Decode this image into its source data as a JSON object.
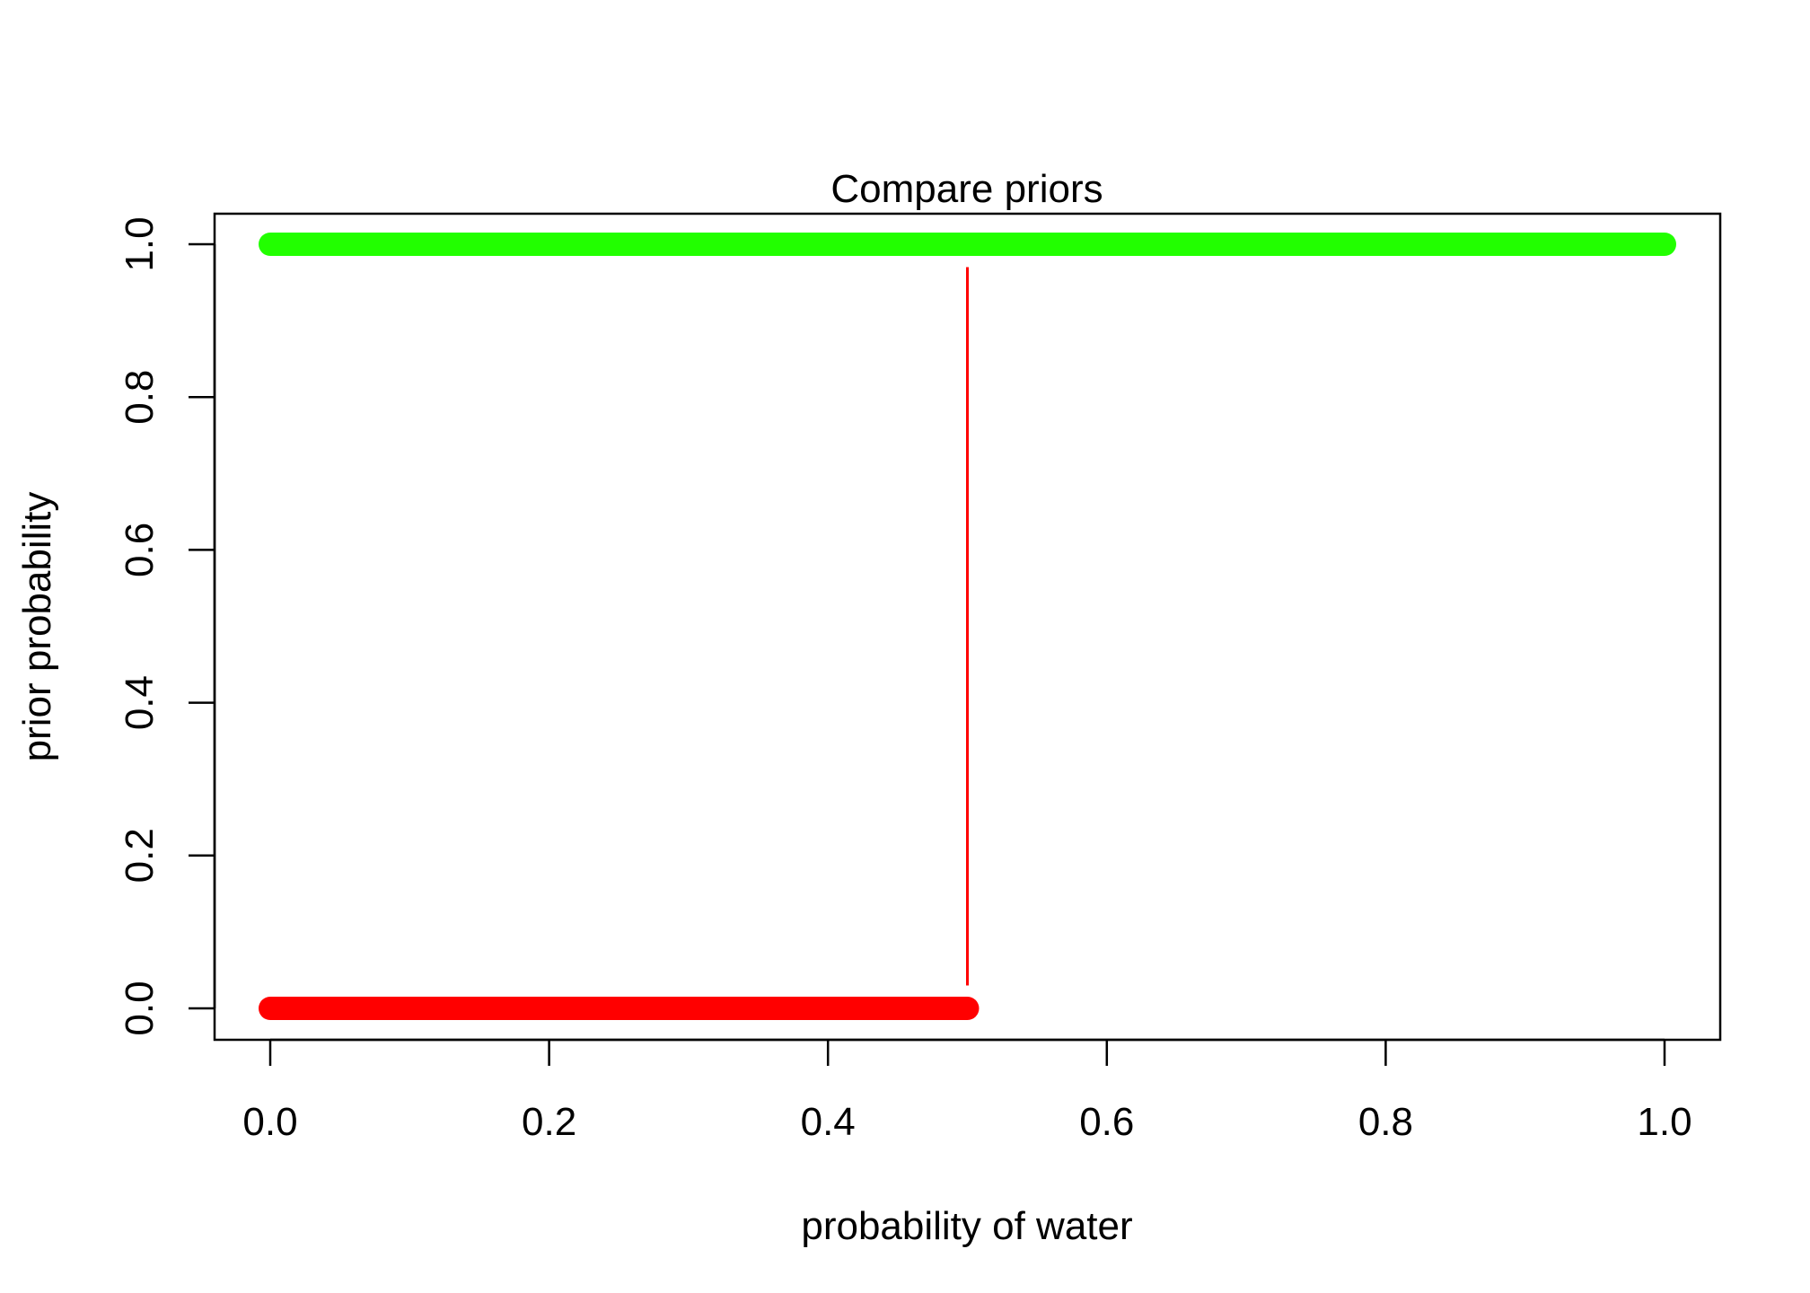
{
  "chart_data": {
    "type": "line",
    "title": "Compare priors",
    "xlabel": "probability of water",
    "ylabel": "prior probability",
    "xlim": [
      0.0,
      1.0
    ],
    "ylim": [
      0.0,
      1.0
    ],
    "x_ticks": [
      "0.0",
      "0.2",
      "0.4",
      "0.6",
      "0.8",
      "1.0"
    ],
    "y_ticks": [
      "0.0",
      "0.2",
      "0.4",
      "0.6",
      "0.8",
      "1.0"
    ],
    "grid": false,
    "legend": "none",
    "series": [
      {
        "color": "#22ff00",
        "style": "thick-points",
        "x": [
          0.0,
          1.0
        ],
        "y": [
          1.0,
          1.0
        ]
      },
      {
        "color": "#ff0000",
        "style": "step",
        "x": [
          0.0,
          0.5,
          0.5
        ],
        "y": [
          0.0,
          0.0,
          1.0
        ],
        "segments": [
          {
            "x": [
              0.0,
              0.5
            ],
            "y": [
              0.0,
              0.0
            ],
            "weight": "thick"
          },
          {
            "x": [
              0.5,
              0.5
            ],
            "y": [
              0.03,
              0.97
            ],
            "weight": "thin"
          }
        ]
      }
    ]
  }
}
